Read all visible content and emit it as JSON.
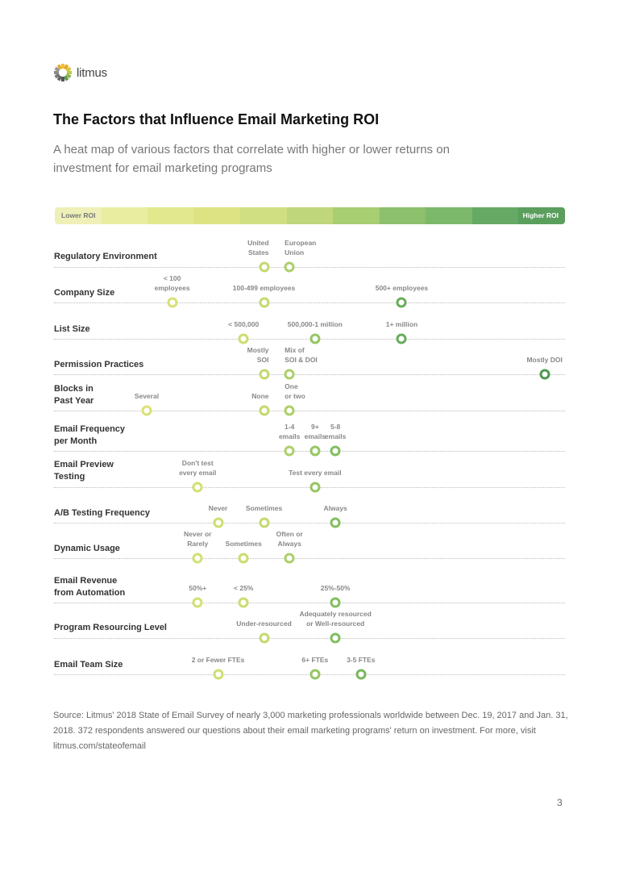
{
  "logo": {
    "text": "litmus"
  },
  "title": "The Factors that Influence Email Marketing ROI",
  "subtitle": "A heat map of various factors that correlate with higher or lower returns on investment for email marketing programs",
  "scale": {
    "low_label": "Lower ROI",
    "high_label": "Higher ROI",
    "colors": [
      "#eef0b8",
      "#e9eda0",
      "#e2e88e",
      "#dde283",
      "#cfdf82",
      "#bfd77a",
      "#a8ce72",
      "#8cc06c",
      "#7cb869",
      "#66a964",
      "#5a9f5d"
    ]
  },
  "roi_scale_note_range": [
    0,
    10
  ],
  "rows": [
    {
      "label": "Regulatory Environment",
      "options": [
        {
          "label": "United\nStates",
          "roi": 4.1
        },
        {
          "label": "European\nUnion",
          "roi": 4.6
        }
      ]
    },
    {
      "label": "Company Size",
      "options": [
        {
          "label": "< 100\nemployees",
          "roi": 2.3
        },
        {
          "label": "100-499 employees",
          "roi": 4.1
        },
        {
          "label": "500+ employees",
          "roi": 6.8
        }
      ]
    },
    {
      "label": "List Size",
      "options": [
        {
          "label": "< 500,000",
          "roi": 3.7
        },
        {
          "label": "500,000-1 million",
          "roi": 5.1
        },
        {
          "label": "1+ million",
          "roi": 6.8
        }
      ]
    },
    {
      "label": "Permission Practices",
      "options": [
        {
          "label": "Mostly\nSOI",
          "roi": 4.1
        },
        {
          "label": "Mix of\nSOI & DOI",
          "roi": 4.6
        },
        {
          "label": "Mostly DOI",
          "roi": 9.6
        }
      ]
    },
    {
      "label": "Blocks in\nPast Year",
      "options": [
        {
          "label": "Several",
          "roi": 1.8
        },
        {
          "label": "None",
          "roi": 4.1
        },
        {
          "label": "One\nor two",
          "roi": 4.6
        }
      ]
    },
    {
      "label": "Email Frequency\nper Month",
      "options": [
        {
          "label": "1-4\nemails",
          "roi": 4.6
        },
        {
          "label": "9+\nemails",
          "roi": 5.1
        },
        {
          "label": "5-8\nemails",
          "roi": 5.5
        }
      ]
    },
    {
      "label": "Email Preview\nTesting",
      "options": [
        {
          "label": "Don't test\nevery email",
          "roi": 2.8
        },
        {
          "label": "Test every email",
          "roi": 5.1
        }
      ]
    },
    {
      "label": "A/B Testing Frequency",
      "options": [
        {
          "label": "Never",
          "roi": 3.2
        },
        {
          "label": "Sometimes",
          "roi": 4.1
        },
        {
          "label": "Always",
          "roi": 5.5
        }
      ]
    },
    {
      "label": "Dynamic Usage",
      "options": [
        {
          "label": "Never or\nRarely",
          "roi": 2.8
        },
        {
          "label": "Sometimes",
          "roi": 3.7
        },
        {
          "label": "Often or\nAlways",
          "roi": 4.6
        }
      ]
    },
    {
      "label": "Email Revenue\nfrom Automation",
      "options": [
        {
          "label": "50%+",
          "roi": 2.8
        },
        {
          "label": "< 25%",
          "roi": 3.7
        },
        {
          "label": "25%-50%",
          "roi": 5.5
        }
      ]
    },
    {
      "label": "Program Resourcing Level",
      "options": [
        {
          "label": "Under-resourced",
          "roi": 4.1
        },
        {
          "label": "Adequately resourced\nor Well-resourced",
          "roi": 5.5
        }
      ]
    },
    {
      "label": "Email Team Size",
      "options": [
        {
          "label": "2 or Fewer FTEs",
          "roi": 3.2
        },
        {
          "label": "6+ FTEs",
          "roi": 5.1
        },
        {
          "label": "3-5 FTEs",
          "roi": 6.0
        }
      ]
    }
  ],
  "source": "Source: Litmus' 2018 State of Email Survey of nearly 3,000 marketing professionals worldwide between Dec. 19, 2017 and Jan. 31, 2018. 372 respondents answered our questions about their email marketing programs' return on investment. For more, visit litmus.com/stateofemail",
  "page_number": "3"
}
